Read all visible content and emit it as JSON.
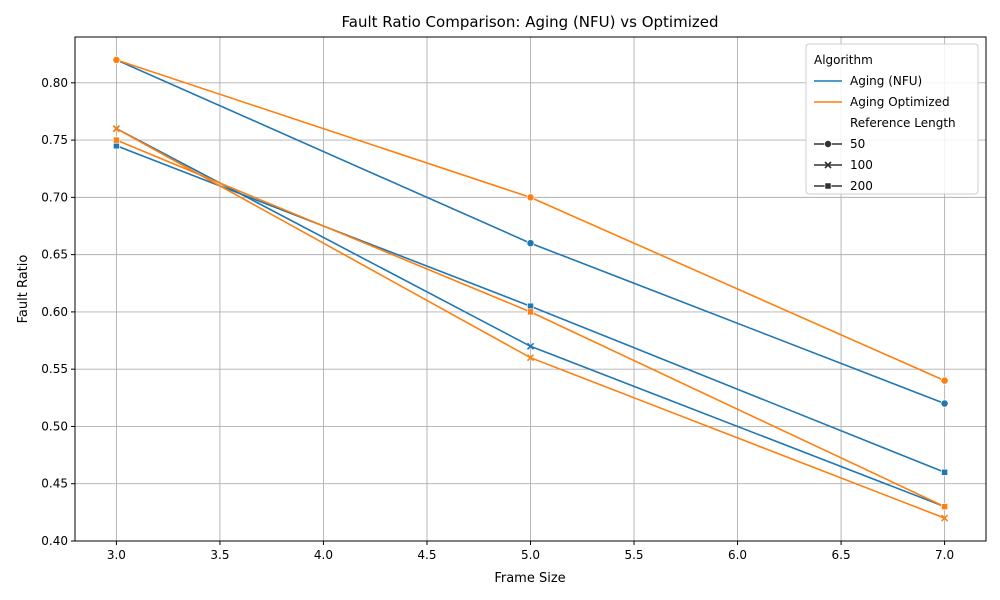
{
  "chart_data": {
    "type": "line",
    "title": "Fault Ratio Comparison: Aging (NFU) vs Optimized",
    "xlabel": "Frame Size",
    "ylabel": "Fault Ratio",
    "xlim": [
      2.8,
      7.2
    ],
    "ylim": [
      0.4,
      0.84
    ],
    "x_ticks": [
      "3.0",
      "3.5",
      "4.0",
      "4.5",
      "5.0",
      "5.5",
      "6.0",
      "6.5",
      "7.0"
    ],
    "y_ticks": [
      "0.40",
      "0.45",
      "0.50",
      "0.55",
      "0.60",
      "0.65",
      "0.70",
      "0.75",
      "0.80"
    ],
    "grid": true,
    "legend_position": "top-right",
    "legend": {
      "hue_title": "Algorithm",
      "style_title": "Reference Length"
    },
    "algorithms": [
      {
        "name": "Aging (NFU)",
        "color": "#1f77b4"
      },
      {
        "name": "Aging Optimized",
        "color": "#ff7f0e"
      }
    ],
    "reference_lengths": [
      {
        "name": "50",
        "marker": "circle"
      },
      {
        "name": "100",
        "marker": "x"
      },
      {
        "name": "200",
        "marker": "square"
      }
    ],
    "x": [
      3,
      5,
      7
    ],
    "series": [
      {
        "algorithm": "Aging (NFU)",
        "reference_length": "50",
        "values": [
          0.82,
          0.66,
          0.52
        ]
      },
      {
        "algorithm": "Aging (NFU)",
        "reference_length": "100",
        "values": [
          0.76,
          0.57,
          0.43
        ]
      },
      {
        "algorithm": "Aging (NFU)",
        "reference_length": "200",
        "values": [
          0.745,
          0.605,
          0.46
        ]
      },
      {
        "algorithm": "Aging Optimized",
        "reference_length": "50",
        "values": [
          0.82,
          0.7,
          0.54
        ]
      },
      {
        "algorithm": "Aging Optimized",
        "reference_length": "100",
        "values": [
          0.76,
          0.56,
          0.42
        ]
      },
      {
        "algorithm": "Aging Optimized",
        "reference_length": "200",
        "values": [
          0.75,
          0.6,
          0.43
        ]
      }
    ]
  }
}
